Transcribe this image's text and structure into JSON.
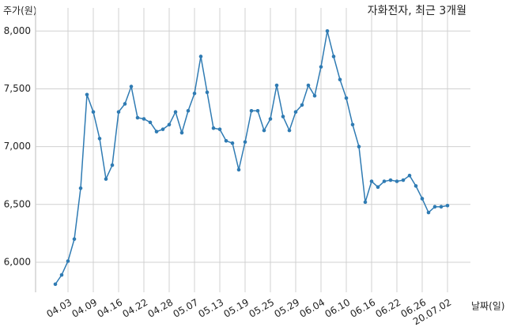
{
  "chart_data": {
    "type": "line",
    "title": "자화전자, 최근 3개월",
    "y_label": "주가(원)",
    "x_label": "날짜(일)",
    "categories": [
      null,
      null,
      "04.03",
      null,
      null,
      null,
      "04.09",
      null,
      null,
      null,
      "04.16",
      null,
      null,
      null,
      "04.22",
      null,
      null,
      null,
      "04.28",
      null,
      null,
      null,
      "05.07",
      null,
      null,
      null,
      "05.13",
      null,
      null,
      null,
      "05.19",
      null,
      null,
      null,
      "05.25",
      null,
      null,
      null,
      "05.29",
      null,
      null,
      null,
      "06.04",
      null,
      null,
      null,
      "06.10",
      null,
      null,
      null,
      "06.16",
      null,
      null,
      null,
      "06.22",
      null,
      null,
      null,
      "06.26",
      null,
      null,
      null,
      "20.07.02"
    ],
    "values": [
      5810,
      5890,
      6010,
      6200,
      6640,
      7450,
      7300,
      7070,
      6720,
      6840,
      7300,
      7370,
      7520,
      7250,
      7240,
      7210,
      7130,
      7150,
      7190,
      7300,
      7120,
      7310,
      7460,
      7780,
      7470,
      7160,
      7150,
      7050,
      7030,
      6800,
      7040,
      7310,
      7310,
      7140,
      7240,
      7530,
      7260,
      7140,
      7300,
      7360,
      7530,
      7440,
      7690,
      8000,
      7780,
      7580,
      7420,
      7190,
      7000,
      6520,
      6700,
      6650,
      6700,
      6710,
      6700,
      6710,
      6750,
      6660,
      6550,
      6430,
      6480,
      6480,
      6490
    ],
    "color": "#2f7bb3",
    "ylim": [
      5740,
      8200
    ],
    "yticks": [
      {
        "value": 6000,
        "label": "6,000"
      },
      {
        "value": 6500,
        "label": "6,500"
      },
      {
        "value": 7000,
        "label": "7,000"
      },
      {
        "value": 7500,
        "label": "7,500"
      },
      {
        "value": 8000,
        "label": "8,000"
      }
    ],
    "grid": true
  }
}
